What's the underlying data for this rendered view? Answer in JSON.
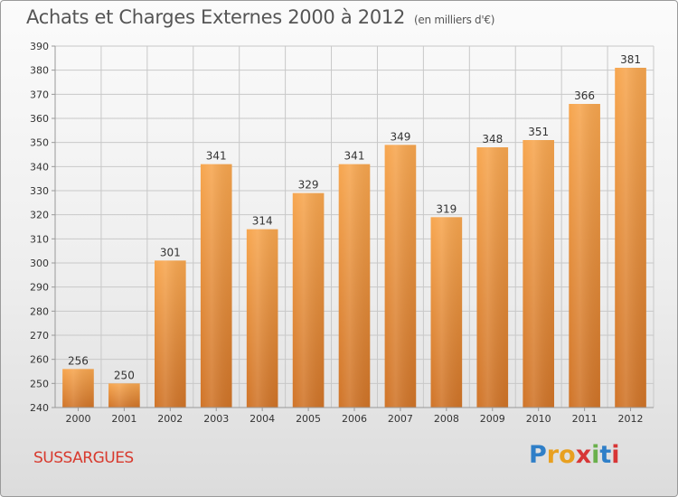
{
  "title": "Achats et Charges Externes 2000 à 2012",
  "unit": "(en milliers d'€)",
  "commune": "SUSSARGUES",
  "logo": {
    "text": "Proxiti",
    "letters": [
      {
        "ch": "P",
        "color": "#2f7fc8"
      },
      {
        "ch": "r",
        "color": "#e8a020"
      },
      {
        "ch": "o",
        "color": "#e8a020"
      },
      {
        "ch": "x",
        "color": "#d73636"
      },
      {
        "ch": "i",
        "color": "#6ab04c"
      },
      {
        "ch": "t",
        "color": "#2f7fc8"
      },
      {
        "ch": "i",
        "color": "#d73636"
      }
    ]
  },
  "colors": {
    "bar_light": "#f7a64f",
    "bar_dark": "#d07428",
    "grid": "#c8c8c8",
    "axis_text": "#333333"
  },
  "chart_data": {
    "type": "bar",
    "title": "Achats et Charges Externes 2000 à 2012",
    "categories": [
      "2000",
      "2001",
      "2002",
      "2003",
      "2004",
      "2005",
      "2006",
      "2007",
      "2008",
      "2009",
      "2010",
      "2011",
      "2012"
    ],
    "values": [
      256,
      250,
      301,
      341,
      314,
      329,
      341,
      349,
      319,
      348,
      351,
      366,
      381
    ],
    "ylim": [
      240,
      390
    ],
    "yticks": [
      240,
      250,
      260,
      270,
      280,
      290,
      300,
      310,
      320,
      330,
      340,
      350,
      360,
      370,
      380,
      390
    ],
    "grid": true,
    "data_labels": true
  }
}
